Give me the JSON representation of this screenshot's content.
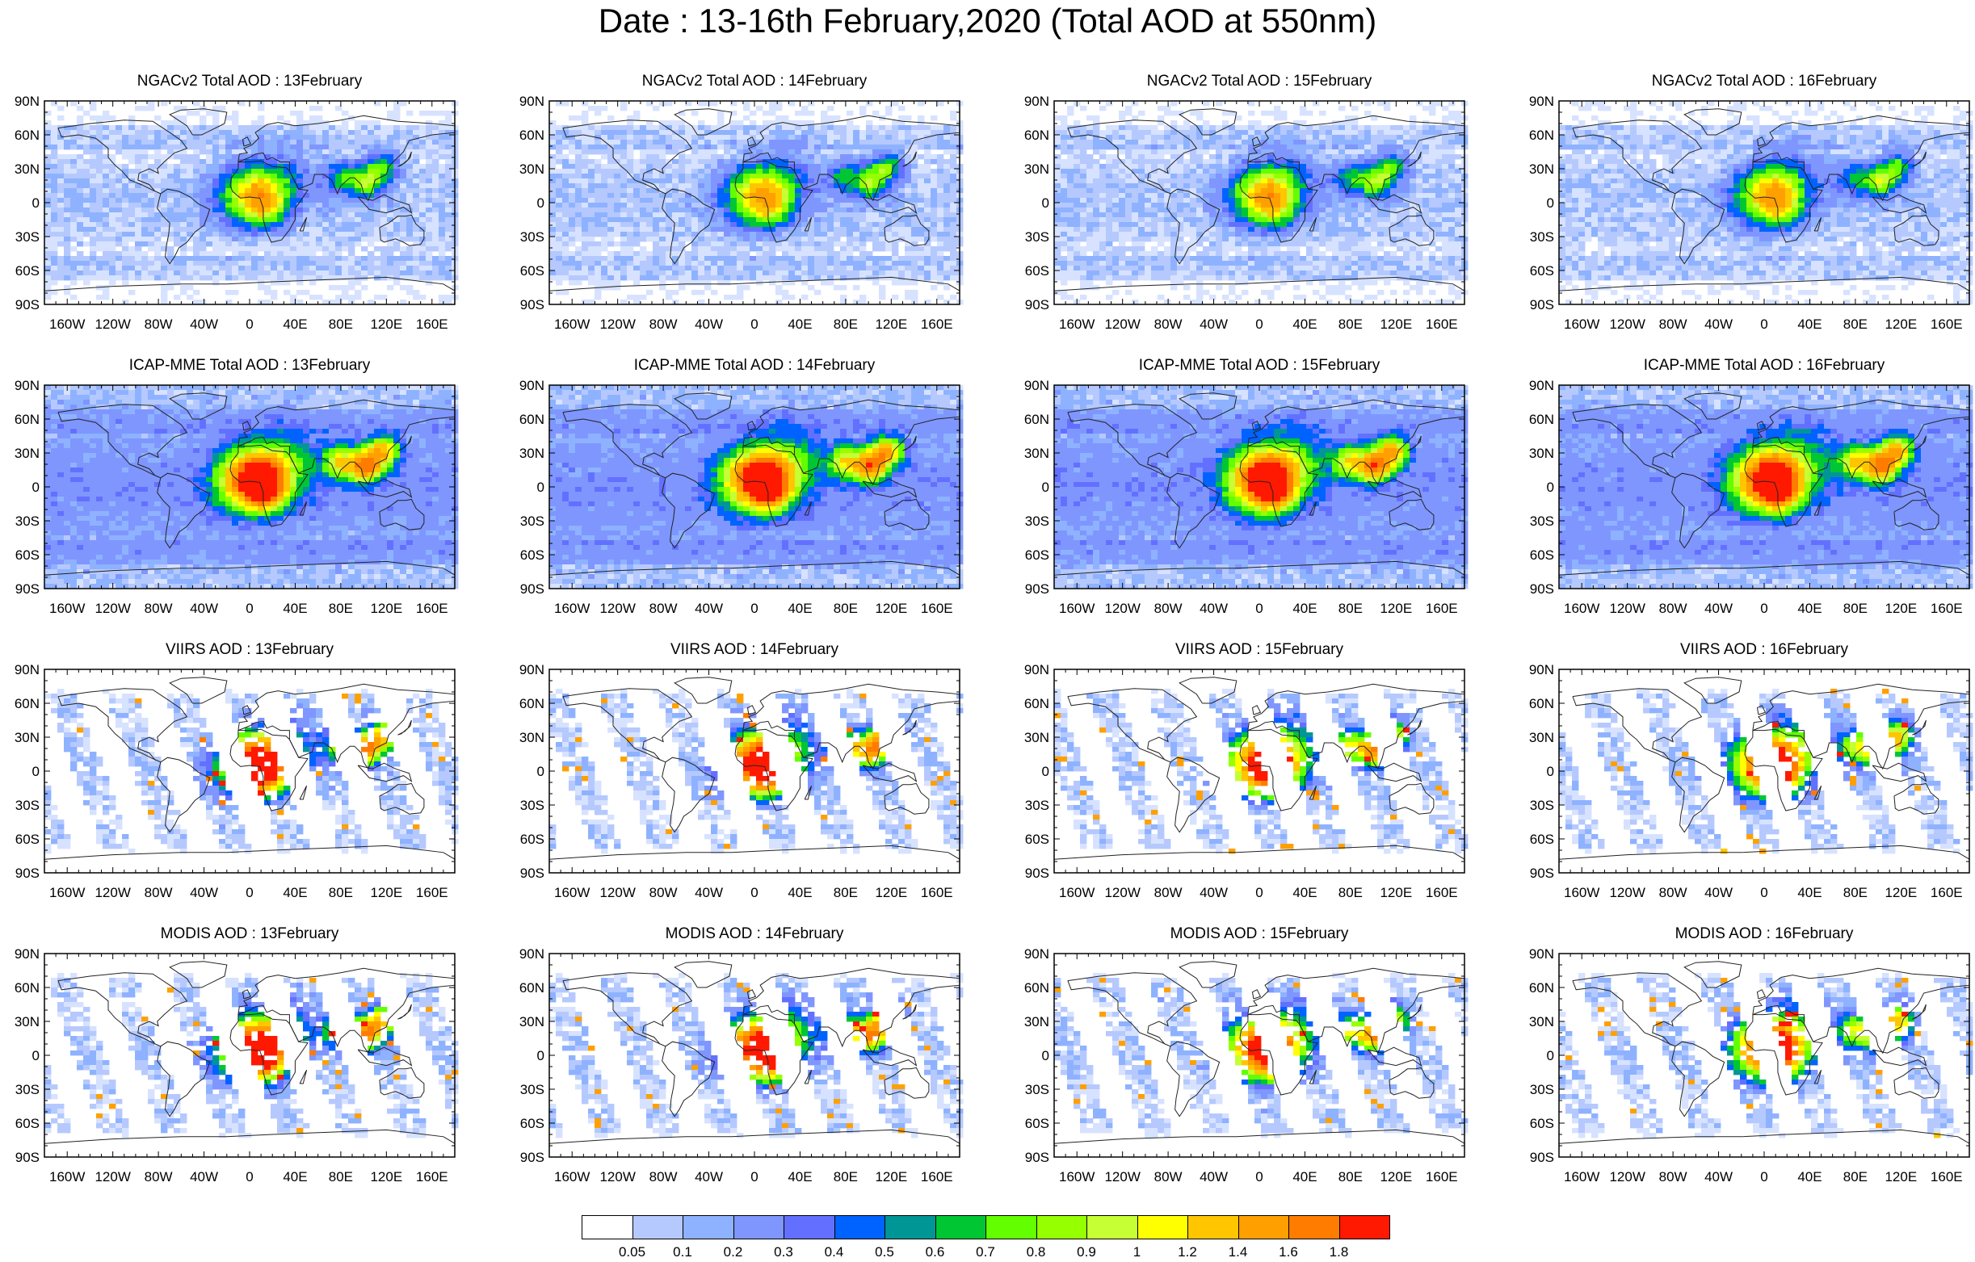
{
  "title": "Date : 13-16th February,2020 (Total AOD at 550nm)",
  "rows": [
    {
      "product": "NGACv2 Total AOD",
      "style": "model-light"
    },
    {
      "product": "ICAP-MME Total AOD",
      "style": "model-full"
    },
    {
      "product": "VIIRS AOD",
      "style": "satellite"
    },
    {
      "product": "MODIS AOD",
      "style": "satellite"
    }
  ],
  "dates": [
    "13February",
    "14February",
    "15February",
    "16February"
  ],
  "panel_titles": [
    "NGACv2 Total AOD : 13February",
    "NGACv2 Total AOD : 14February",
    "NGACv2 Total AOD : 15February",
    "NGACv2 Total AOD : 16February",
    "ICAP-MME Total AOD : 13February",
    "ICAP-MME Total AOD : 14February",
    "ICAP-MME Total AOD : 15February",
    "ICAP-MME Total AOD : 16February",
    "VIIRS AOD : 13February",
    "VIIRS AOD : 14February",
    "VIIRS AOD : 15February",
    "VIIRS AOD : 16February",
    "MODIS AOD : 13February",
    "MODIS AOD : 14February",
    "MODIS AOD : 15February",
    "MODIS AOD : 16February"
  ],
  "lat_ticks": [
    "90N",
    "60N",
    "30N",
    "0",
    "30S",
    "60S",
    "90S"
  ],
  "lat_values": [
    90,
    60,
    30,
    0,
    -30,
    -60,
    -90
  ],
  "lon_ticks": [
    "160W",
    "120W",
    "80W",
    "40W",
    "0",
    "40E",
    "80E",
    "120E",
    "160E"
  ],
  "lon_values": [
    -160,
    -120,
    -80,
    -40,
    0,
    40,
    80,
    120,
    160
  ],
  "colorbar": {
    "labels": [
      "0.05",
      "0.1",
      "0.2",
      "0.3",
      "0.4",
      "0.5",
      "0.6",
      "0.7",
      "0.8",
      "0.9",
      "1",
      "1.2",
      "1.4",
      "1.6",
      "1.8"
    ],
    "colors": [
      "#ffffff",
      "#d6e2ff",
      "#b5c9ff",
      "#8eb2ff",
      "#7f96ff",
      "#6370ff",
      "#0063ff",
      "#009696",
      "#00c633",
      "#63ff00",
      "#96ff00",
      "#c6ff33",
      "#ffff00",
      "#ffc600",
      "#ffa000",
      "#ff7c00",
      "#ff1900"
    ]
  }
}
